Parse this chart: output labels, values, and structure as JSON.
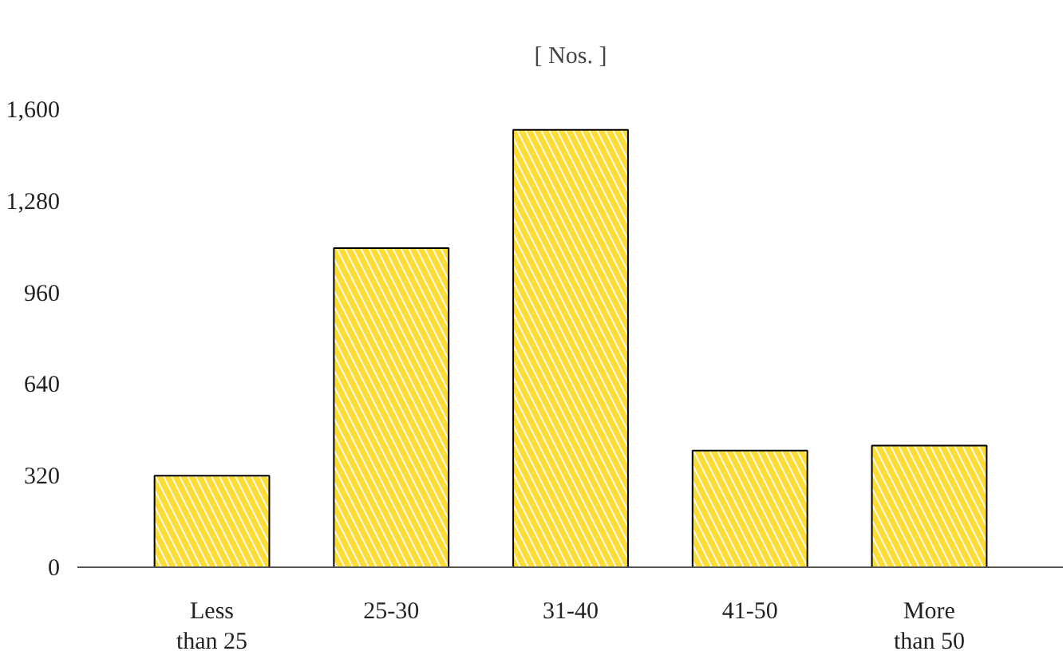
{
  "chart_data": {
    "type": "bar",
    "title": "[ Nos. ]",
    "categories": [
      "Less\nthan 25",
      "25-30",
      "31-40",
      "41-50",
      "More\nthan 50"
    ],
    "values": [
      320,
      1115,
      1528,
      408,
      425
    ],
    "color": "#fddc35",
    "ylim": [
      0,
      1600
    ],
    "yticks": [
      0,
      {
        "value": 320,
        "label": "320"
      },
      {
        "value": 640,
        "label": "640"
      },
      {
        "value": 960,
        "label": "960"
      },
      {
        "value": 1280,
        "label": "1,280"
      },
      {
        "value": 1600,
        "label": "1,600"
      }
    ],
    "grid": false
  }
}
